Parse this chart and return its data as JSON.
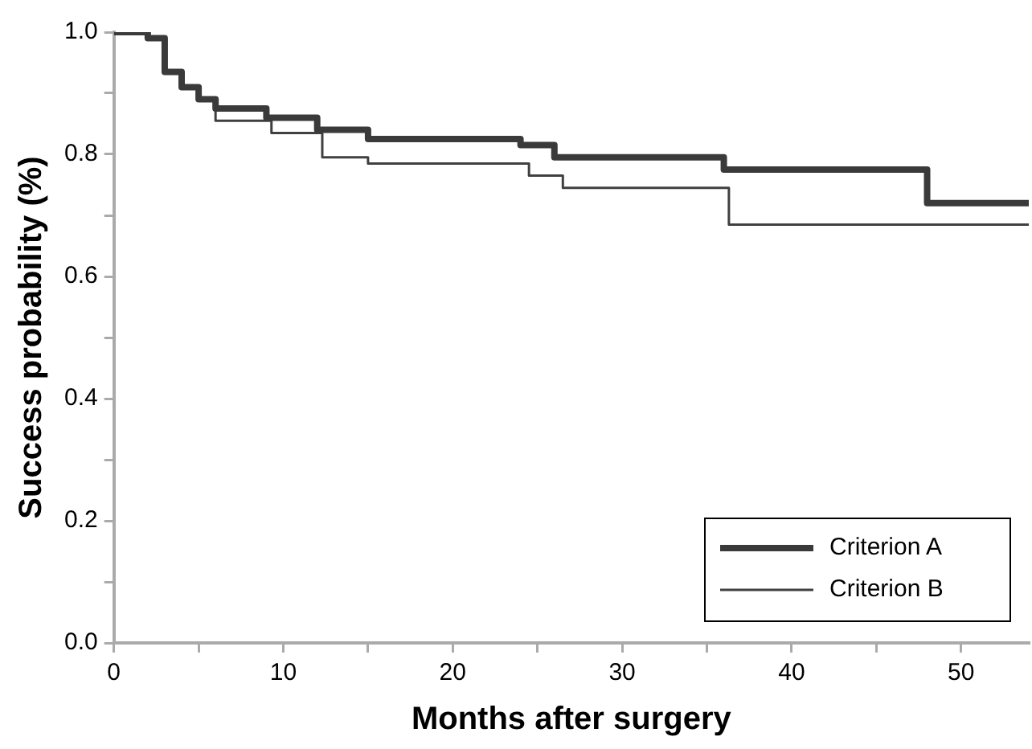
{
  "chart_data": {
    "type": "step",
    "xlabel": "Months after surgery",
    "ylabel": "Success probability (%)",
    "xlim": [
      0,
      54
    ],
    "xticks": [
      0,
      {
        "value": 5,
        "label": null
      },
      10,
      {
        "value": 15,
        "label": null
      },
      20,
      {
        "value": 25,
        "label": null
      },
      30,
      {
        "value": 35,
        "label": null
      },
      40,
      {
        "value": 45,
        "label": null
      },
      50
    ],
    "ylim": [
      0,
      1
    ],
    "yticks": [
      {
        "value": 0,
        "label": "0.0"
      },
      {
        "value": 0.1,
        "label": null
      },
      {
        "value": 0.2,
        "label": "0.2"
      },
      {
        "value": 0.3,
        "label": null
      },
      {
        "value": 0.4,
        "label": "0.4"
      },
      {
        "value": 0.5,
        "label": null
      },
      {
        "value": 0.6,
        "label": "0.6"
      },
      {
        "value": 0.7,
        "label": null
      },
      {
        "value": 0.8,
        "label": "0.8"
      },
      {
        "value": 0.9,
        "label": null
      },
      {
        "value": 1,
        "label": "1.0"
      }
    ],
    "grid": false,
    "legend": "bottom right",
    "marker": "none",
    "line_style": "solid",
    "series": [
      {
        "name": "Criterion A",
        "color": "#3a3a3a",
        "x": [
          0,
          2,
          3,
          4,
          5,
          6,
          9,
          12,
          15,
          24,
          26,
          36,
          48,
          54
        ],
        "values": [
          1,
          0.99,
          0.935,
          0.91,
          0.89,
          0.875,
          0.86,
          0.84,
          0.825,
          0.815,
          0.795,
          0.775,
          0.72,
          0.72
        ]
      },
      {
        "name": "Criterion B",
        "color": "#404040",
        "x": [
          0,
          2,
          3,
          4,
          5,
          6,
          9.3,
          12.3,
          15,
          24.5,
          26.5,
          36.3,
          54
        ],
        "values": [
          1,
          0.99,
          0.935,
          0.91,
          0.89,
          0.855,
          0.835,
          0.795,
          0.785,
          0.765,
          0.745,
          0.685,
          0.685
        ]
      }
    ]
  }
}
